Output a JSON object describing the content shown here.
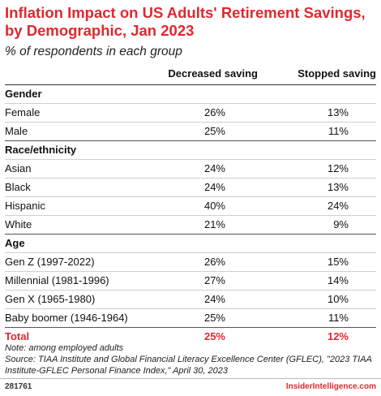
{
  "header": {
    "title": "Inflation Impact on US Adults' Retirement Savings, by Demographic, Jan 2023",
    "subtitle": "% of respondents in each group"
  },
  "table": {
    "columns": [
      "Decreased saving",
      "Stopped saving"
    ],
    "groups": [
      {
        "name": "Gender",
        "rows": [
          {
            "label": "Female",
            "decreased": "26%",
            "stopped": "13%"
          },
          {
            "label": "Male",
            "decreased": "25%",
            "stopped": "11%"
          }
        ]
      },
      {
        "name": "Race/ethnicity",
        "rows": [
          {
            "label": "Asian",
            "decreased": "24%",
            "stopped": "12%"
          },
          {
            "label": "Black",
            "decreased": "24%",
            "stopped": "13%"
          },
          {
            "label": "Hispanic",
            "decreased": "40%",
            "stopped": "24%"
          },
          {
            "label": "White",
            "decreased": "21%",
            "stopped": "9%"
          }
        ]
      },
      {
        "name": "Age",
        "rows": [
          {
            "label": "Gen Z (1997-2022)",
            "decreased": "26%",
            "stopped": "15%"
          },
          {
            "label": "Millennial (1981-1996)",
            "decreased": "27%",
            "stopped": "14%"
          },
          {
            "label": "Gen X (1965-1980)",
            "decreased": "24%",
            "stopped": "10%"
          },
          {
            "label": "Baby boomer (1946-1964)",
            "decreased": "25%",
            "stopped": "11%"
          }
        ]
      }
    ],
    "total": {
      "label": "Total",
      "decreased": "25%",
      "stopped": "12%"
    }
  },
  "notes": {
    "note": "Note: among employed adults",
    "source": "Source: TIAA Institute and Global Financial Literacy Excellence Center (GFLEC), \"2023 TIAA Institute-GFLEC Personal Finance Index,\" April 30, 2023"
  },
  "footer": {
    "id": "281761",
    "brand": "InsiderIntelligence.com"
  },
  "colors": {
    "accent": "#e0282e"
  },
  "chart_data": {
    "type": "table",
    "title": "Inflation Impact on US Adults' Retirement Savings, by Demographic, Jan 2023",
    "subtitle": "% of respondents in each group",
    "columns": [
      "Decreased saving",
      "Stopped saving"
    ],
    "rows": [
      {
        "group": "Gender",
        "label": "Female",
        "values": [
          26,
          13
        ]
      },
      {
        "group": "Gender",
        "label": "Male",
        "values": [
          25,
          11
        ]
      },
      {
        "group": "Race/ethnicity",
        "label": "Asian",
        "values": [
          24,
          12
        ]
      },
      {
        "group": "Race/ethnicity",
        "label": "Black",
        "values": [
          24,
          13
        ]
      },
      {
        "group": "Race/ethnicity",
        "label": "Hispanic",
        "values": [
          40,
          24
        ]
      },
      {
        "group": "Race/ethnicity",
        "label": "White",
        "values": [
          21,
          9
        ]
      },
      {
        "group": "Age",
        "label": "Gen Z (1997-2022)",
        "values": [
          26,
          15
        ]
      },
      {
        "group": "Age",
        "label": "Millennial (1981-1996)",
        "values": [
          27,
          14
        ]
      },
      {
        "group": "Age",
        "label": "Gen X (1965-1980)",
        "values": [
          24,
          10
        ]
      },
      {
        "group": "Age",
        "label": "Baby boomer (1946-1964)",
        "values": [
          25,
          11
        ]
      },
      {
        "group": "",
        "label": "Total",
        "values": [
          25,
          12
        ]
      }
    ]
  }
}
